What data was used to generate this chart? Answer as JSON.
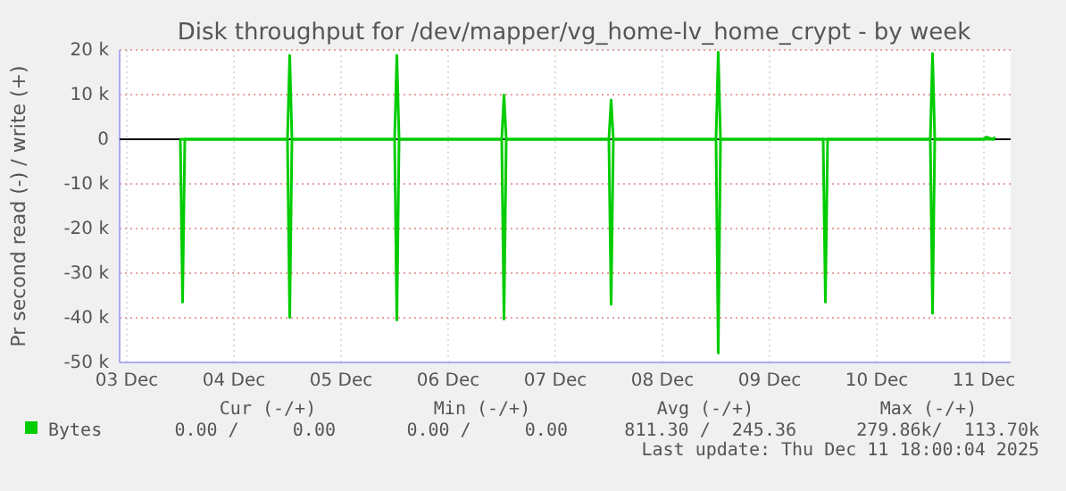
{
  "chart_data": {
    "type": "line",
    "title": "Disk throughput for /dev/mapper/vg_home-lv_home_crypt - by week",
    "ylabel": "Pr second read (-) / write (+)",
    "x": [
      "2025-12-04T00:00",
      "2025-12-04T00:30",
      "2025-12-04T01:00",
      "2025-12-05T00:00",
      "2025-12-05T00:30",
      "2025-12-05T01:00",
      "2025-12-06T00:00",
      "2025-12-06T00:30",
      "2025-12-06T01:00",
      "2025-12-07T00:00",
      "2025-12-07T00:30",
      "2025-12-07T01:00",
      "2025-12-08T00:00",
      "2025-12-08T00:30",
      "2025-12-08T01:00",
      "2025-12-09T00:00",
      "2025-12-09T00:30",
      "2025-12-09T01:00",
      "2025-12-10T00:00",
      "2025-12-10T00:30",
      "2025-12-10T01:00",
      "2025-12-11T00:00",
      "2025-12-11T00:30",
      "2025-12-11T01:00",
      "2025-12-11T12:00",
      "2025-12-11T12:30",
      "2025-12-11T14:00",
      "2025-12-11T14:30"
    ],
    "series": [
      {
        "name": "Bytes",
        "color": "#00cc00",
        "values": [
          0,
          0,
          0,
          0,
          18800,
          0,
          0,
          18800,
          0,
          0,
          9900,
          0,
          0,
          8800,
          0,
          0,
          19500,
          0,
          0,
          0,
          0,
          0,
          19200,
          0,
          0,
          500,
          0,
          500
        ]
      },
      {
        "color": "#00cc00",
        "values": [
          0,
          -36500,
          0,
          0,
          -39900,
          0,
          0,
          -40500,
          0,
          0,
          -40300,
          0,
          0,
          -37000,
          0,
          0,
          -47900,
          0,
          0,
          -36500,
          0,
          0,
          -39000,
          0,
          0,
          0,
          0,
          0
        ]
      }
    ],
    "xlim": [
      "2025-12-03T10:24",
      "2025-12-11T18:00"
    ],
    "xticks": [
      {
        "value": "2025-12-03T12:00",
        "label": "03 Dec"
      },
      {
        "value": "2025-12-04T12:00",
        "label": "04 Dec"
      },
      {
        "value": "2025-12-05T12:00",
        "label": "05 Dec"
      },
      {
        "value": "2025-12-06T12:00",
        "label": "06 Dec"
      },
      {
        "value": "2025-12-07T12:00",
        "label": "07 Dec"
      },
      {
        "value": "2025-12-08T12:00",
        "label": "08 Dec"
      },
      {
        "value": "2025-12-09T12:00",
        "label": "09 Dec"
      },
      {
        "value": "2025-12-10T12:00",
        "label": "10 Dec"
      },
      {
        "value": "2025-12-11T12:00",
        "label": "11 Dec"
      }
    ],
    "ylim": [
      -50000,
      20000
    ],
    "yticks": [
      {
        "value": -50000,
        "label": "-50 k"
      },
      {
        "value": -40000,
        "label": "-40 k"
      },
      {
        "value": -30000,
        "label": "-30 k"
      },
      {
        "value": -20000,
        "label": "-20 k"
      },
      {
        "value": -10000,
        "label": "-10 k"
      },
      {
        "value": 0,
        "label": "0"
      },
      {
        "value": 10000,
        "label": "10 k"
      },
      {
        "value": 20000,
        "label": "20 k"
      }
    ],
    "grid": true,
    "legend": "bottom left",
    "marker": "none",
    "line_style": "solid",
    "ref_lines": [
      {
        "axis": "y",
        "value": 0,
        "color": "#000000"
      }
    ],
    "annotations": [
      "Cur (-/+)",
      "Min (-/+)",
      "Avg (-/+)",
      "Max (-/+)",
      "0.00 /     0.00",
      "0.00 /     0.00",
      "811.30 /  245.36",
      "279.86k/  113.70k",
      "Last update: Thu Dec 11 18:00:04 2025"
    ]
  }
}
